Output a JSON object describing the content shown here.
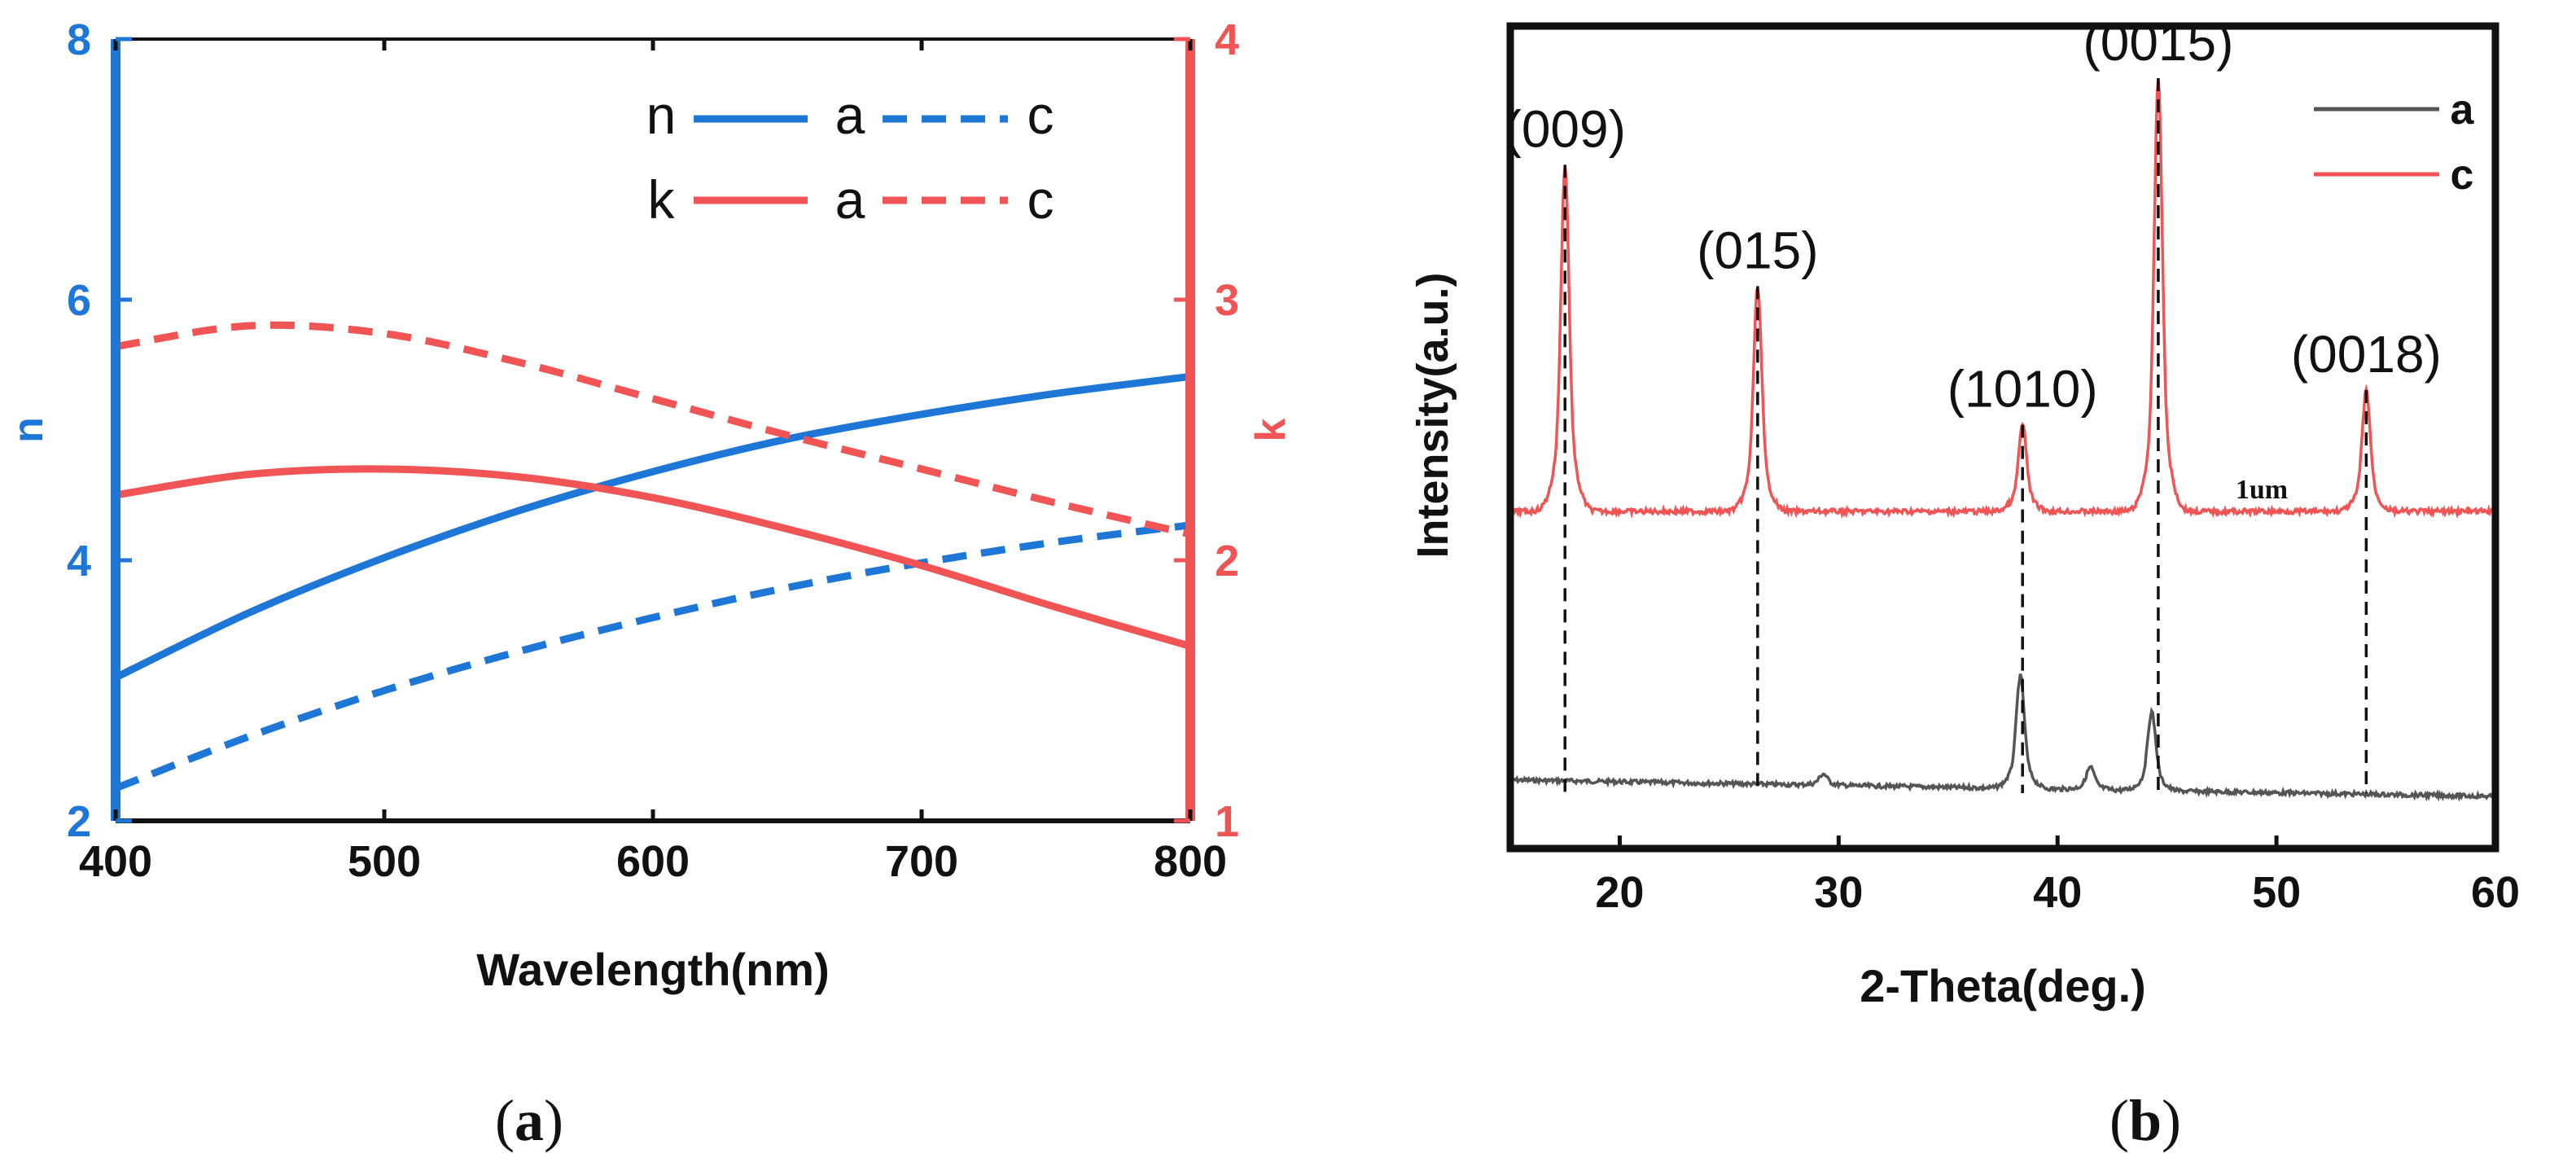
{
  "colors": {
    "blue": "#1e77d6",
    "red": "#f05454",
    "dark": "#555555",
    "black": "#111111"
  },
  "chart_data": [
    {
      "type": "line",
      "panel_label": "(a)",
      "panel_letter": "a",
      "xlabel": "Wavelength(nm)",
      "ylabel_left": "n",
      "ylabel_right": "k",
      "xlim": [
        400,
        800
      ],
      "ylim_left": [
        2,
        8
      ],
      "ylim_right": [
        1,
        4
      ],
      "x_ticks": [
        "400",
        "500",
        "600",
        "700",
        "800"
      ],
      "yleft_ticks": [
        "2",
        "4",
        "6",
        "8"
      ],
      "yright_ticks": [
        "1",
        "2",
        "3",
        "4"
      ],
      "legend": {
        "rows": [
          {
            "label": "n",
            "solid": "a",
            "dashed": "c"
          },
          {
            "label": "k",
            "solid": "a",
            "dashed": "c"
          }
        ]
      },
      "series": [
        {
          "name": "n a",
          "axis": "left",
          "style": "solid",
          "color": "#1e77d6",
          "x": [
            400,
            450,
            500,
            550,
            600,
            650,
            700,
            750,
            800
          ],
          "y": [
            3.1,
            3.6,
            4.02,
            4.38,
            4.68,
            4.93,
            5.12,
            5.28,
            5.41
          ]
        },
        {
          "name": "n c",
          "axis": "left",
          "style": "dashed",
          "color": "#1e77d6",
          "x": [
            400,
            450,
            500,
            550,
            600,
            650,
            700,
            750,
            800
          ],
          "y": [
            2.25,
            2.65,
            3.0,
            3.3,
            3.56,
            3.79,
            3.98,
            4.14,
            4.27
          ]
        },
        {
          "name": "k a",
          "axis": "right",
          "style": "solid",
          "color": "#f05454",
          "x": [
            400,
            450,
            500,
            550,
            600,
            650,
            700,
            750,
            800
          ],
          "y": [
            2.25,
            2.33,
            2.35,
            2.32,
            2.24,
            2.12,
            1.98,
            1.82,
            1.67
          ]
        },
        {
          "name": "k c",
          "axis": "right",
          "style": "dashed",
          "color": "#f05454",
          "x": [
            400,
            450,
            500,
            550,
            600,
            650,
            700,
            750,
            800
          ],
          "y": [
            2.82,
            2.9,
            2.87,
            2.76,
            2.62,
            2.48,
            2.35,
            2.22,
            2.1
          ]
        }
      ]
    },
    {
      "type": "line",
      "panel_label": "(b)",
      "panel_letter": "b",
      "xlabel": "2-Theta(deg.)",
      "ylabel": "Intensity(a.u.)",
      "xlim": [
        15,
        60
      ],
      "x_ticks": [
        "20",
        "30",
        "40",
        "50",
        "60"
      ],
      "legend": [
        "a",
        "c"
      ],
      "annotation": "1um",
      "peaks": [
        {
          "label": "(009)",
          "x": 17.5,
          "height": 0.8
        },
        {
          "label": "(015)",
          "x": 26.3,
          "height": 0.52
        },
        {
          "label": "(1010)",
          "x": 38.4,
          "height": 0.2
        },
        {
          "label": "(0015)",
          "x": 44.6,
          "height": 1.0
        },
        {
          "label": "(0018)",
          "x": 54.1,
          "height": 0.28
        }
      ],
      "series": [
        {
          "name": "a",
          "color": "#555555",
          "baseline": 0.05,
          "peaks": [
            {
              "x": 38.3,
              "height": 0.1
            },
            {
              "x": 41.5,
              "height": 0.02
            },
            {
              "x": 44.3,
              "height": 0.07
            },
            {
              "x": 29.3,
              "height": 0.01
            }
          ]
        },
        {
          "name": "c",
          "color": "#f05454",
          "baseline": 0.6
        }
      ]
    }
  ]
}
